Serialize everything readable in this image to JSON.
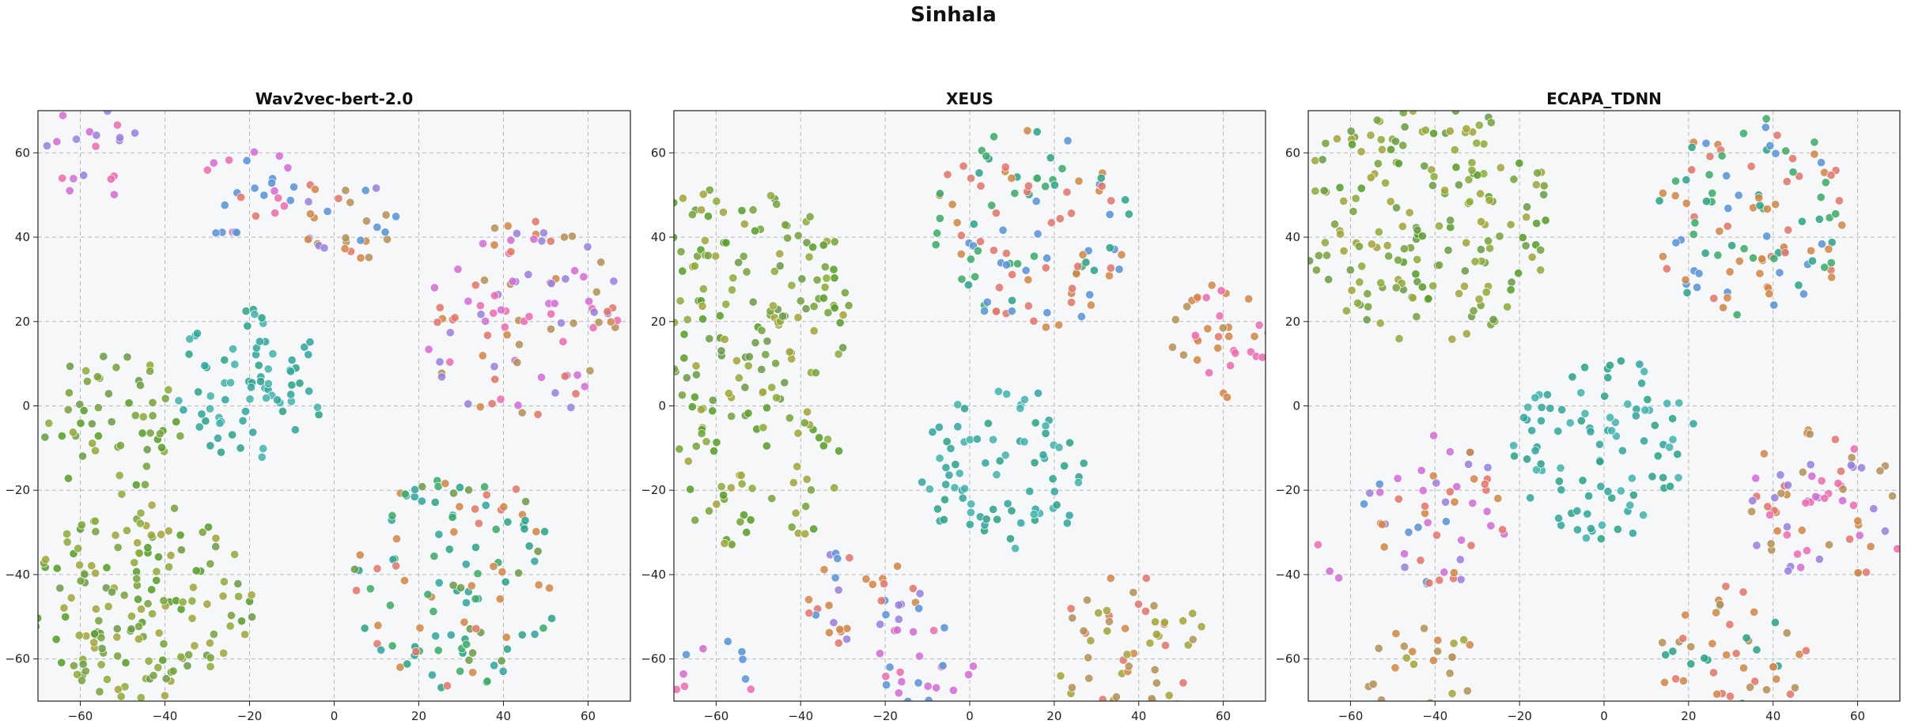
{
  "suptitle": "Sinhala",
  "colors": {
    "palette": [
      "#5aa02c",
      "#7aa640",
      "#8fae3c",
      "#a4a83e",
      "#6f9e4a",
      "#3fae6a",
      "#2fa58a",
      "#35a8a0",
      "#46b5b0",
      "#5c96d8",
      "#9a82de",
      "#d56fd6",
      "#ee6fb0",
      "#e4786e",
      "#d4894a",
      "#b6945a"
    ],
    "plot_background": "#f6f7f9"
  },
  "chart_data": [
    {
      "type": "scatter",
      "title": "Wav2vec-bert-2.0",
      "xlim": [
        -70,
        70
      ],
      "ylim": [
        -70,
        70
      ],
      "xticks": [
        "-60",
        "-40",
        "-20",
        "0",
        "20",
        "40",
        "60"
      ],
      "yticks": [
        "-60",
        "-40",
        "-20",
        "0",
        "20",
        "40",
        "60"
      ],
      "tick_values": [
        -60,
        -40,
        -20,
        0,
        20,
        40,
        60
      ],
      "grid": true,
      "clusters": [
        {
          "cx": -58,
          "cy": 60,
          "r": 12,
          "n": 20,
          "colors": [
            11,
            12,
            10
          ]
        },
        {
          "cx": -20,
          "cy": 50,
          "r": 12,
          "n": 26,
          "colors": [
            11,
            12,
            9,
            13
          ]
        },
        {
          "cx": 3,
          "cy": 45,
          "r": 12,
          "n": 30,
          "colors": [
            9,
            10,
            13,
            14,
            15
          ]
        },
        {
          "cx": -20,
          "cy": 5,
          "r": 18,
          "n": 75,
          "colors": [
            6,
            7,
            8
          ]
        },
        {
          "cx": 45,
          "cy": 20,
          "r": 24,
          "n": 100,
          "colors": [
            13,
            14,
            15,
            12,
            10,
            11
          ]
        },
        {
          "cx": -52,
          "cy": -5,
          "r": 18,
          "n": 55,
          "colors": [
            0,
            1,
            2,
            4
          ]
        },
        {
          "cx": -45,
          "cy": -48,
          "r": 26,
          "n": 160,
          "colors": [
            0,
            1,
            2,
            3,
            4
          ]
        },
        {
          "cx": 30,
          "cy": -42,
          "r": 26,
          "n": 120,
          "colors": [
            5,
            6,
            13,
            14,
            4,
            7
          ]
        }
      ]
    },
    {
      "type": "scatter",
      "title": "XEUS",
      "xlim": [
        -70,
        70
      ],
      "ylim": [
        -70,
        70
      ],
      "xticks": [
        "-60",
        "-40",
        "-20",
        "0",
        "20",
        "40",
        "60"
      ],
      "yticks": [
        "-60",
        "-40",
        "-20",
        "0",
        "20",
        "40",
        "60"
      ],
      "tick_values": [
        -60,
        -40,
        -20,
        0,
        20,
        40,
        60
      ],
      "grid": true,
      "clusters": [
        {
          "cx": -55,
          "cy": 25,
          "r": 28,
          "n": 170,
          "colors": [
            0,
            1,
            2,
            3,
            4
          ]
        },
        {
          "cx": -50,
          "cy": -15,
          "r": 20,
          "n": 60,
          "colors": [
            0,
            1,
            2,
            3
          ]
        },
        {
          "cx": 15,
          "cy": 42,
          "r": 24,
          "n": 110,
          "colors": [
            5,
            13,
            14,
            9,
            6
          ]
        },
        {
          "cx": 60,
          "cy": 15,
          "r": 14,
          "n": 40,
          "colors": [
            13,
            14,
            12,
            15
          ]
        },
        {
          "cx": 8,
          "cy": -15,
          "r": 20,
          "n": 80,
          "colors": [
            6,
            7,
            8
          ]
        },
        {
          "cx": -25,
          "cy": -45,
          "r": 14,
          "n": 35,
          "colors": [
            9,
            10,
            13,
            14
          ]
        },
        {
          "cx": -10,
          "cy": -62,
          "r": 12,
          "n": 25,
          "colors": [
            11,
            12,
            9
          ]
        },
        {
          "cx": 38,
          "cy": -58,
          "r": 18,
          "n": 55,
          "colors": [
            15,
            14,
            3,
            13
          ]
        },
        {
          "cx": -60,
          "cy": -65,
          "r": 10,
          "n": 12,
          "colors": [
            11,
            12,
            9
          ]
        }
      ]
    },
    {
      "type": "scatter",
      "title": "ECAPA_TDNN",
      "xlim": [
        -70,
        70
      ],
      "ylim": [
        -70,
        70
      ],
      "xticks": [
        "-60",
        "-40",
        "-20",
        "0",
        "20",
        "40",
        "60"
      ],
      "yticks": [
        "-60",
        "-40",
        "-20",
        "0",
        "20",
        "40",
        "60"
      ],
      "tick_values": [
        -60,
        -40,
        -20,
        0,
        20,
        40,
        60
      ],
      "grid": true,
      "clusters": [
        {
          "cx": -42,
          "cy": 45,
          "r": 30,
          "n": 190,
          "colors": [
            0,
            1,
            2,
            3,
            4
          ]
        },
        {
          "cx": 35,
          "cy": 45,
          "r": 24,
          "n": 110,
          "colors": [
            5,
            6,
            13,
            14,
            9
          ]
        },
        {
          "cx": 0,
          "cy": -10,
          "r": 22,
          "n": 95,
          "colors": [
            6,
            7,
            8
          ]
        },
        {
          "cx": -40,
          "cy": -25,
          "r": 18,
          "n": 55,
          "colors": [
            9,
            10,
            11,
            13,
            14
          ]
        },
        {
          "cx": 52,
          "cy": -25,
          "r": 20,
          "n": 70,
          "colors": [
            13,
            14,
            10,
            11,
            12,
            15
          ]
        },
        {
          "cx": 30,
          "cy": -60,
          "r": 18,
          "n": 50,
          "colors": [
            13,
            14,
            15,
            6
          ]
        },
        {
          "cx": -42,
          "cy": -65,
          "r": 14,
          "n": 28,
          "colors": [
            15,
            3,
            14
          ]
        },
        {
          "cx": -68,
          "cy": -38,
          "r": 6,
          "n": 5,
          "colors": [
            11,
            12
          ]
        }
      ]
    }
  ]
}
